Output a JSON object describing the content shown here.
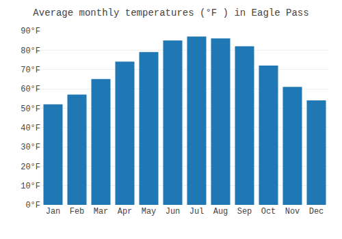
{
  "chart_data": {
    "type": "bar",
    "title": "Average monthly temperatures (°F ) in Eagle Pass",
    "categories": [
      "Jan",
      "Feb",
      "Mar",
      "Apr",
      "May",
      "Jun",
      "Jul",
      "Aug",
      "Sep",
      "Oct",
      "Nov",
      "Dec"
    ],
    "values": [
      52,
      57,
      65,
      74,
      79,
      85,
      87,
      86,
      82,
      72,
      61,
      54
    ],
    "ylim": [
      0,
      90
    ],
    "yticks": [
      {
        "value": 0,
        "label": "0°F"
      },
      {
        "value": 10,
        "label": "10°F"
      },
      {
        "value": 20,
        "label": "20°F"
      },
      {
        "value": 30,
        "label": "30°F"
      },
      {
        "value": 40,
        "label": "40°F"
      },
      {
        "value": 50,
        "label": "50°F"
      },
      {
        "value": 60,
        "label": "60°F"
      },
      {
        "value": 70,
        "label": "70°F"
      },
      {
        "value": 80,
        "label": "80°F"
      },
      {
        "value": 90,
        "label": "90°F"
      }
    ],
    "grid": true
  }
}
